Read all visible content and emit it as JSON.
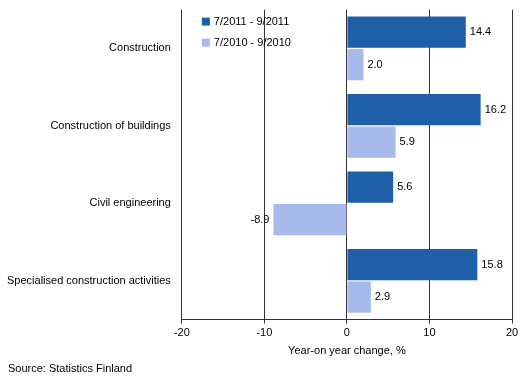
{
  "chart_data": {
    "type": "bar",
    "orientation": "horizontal",
    "categories": [
      "Construction",
      "Construction of buildings",
      "Civil engineering",
      "Specialised construction activities"
    ],
    "series": [
      {
        "name": "7/2011 - 9/2011",
        "color": "#1f5fa8",
        "values": [
          14.4,
          16.2,
          5.6,
          15.8
        ],
        "value_labels": [
          "14.4",
          "16.2",
          "5.6",
          "15.8"
        ]
      },
      {
        "name": "7/2010 - 9/2010",
        "color": "#a8b9ec",
        "values": [
          2.0,
          5.9,
          -8.9,
          2.9
        ],
        "value_labels": [
          "2.0",
          "5.9",
          "-8.9",
          "2.9"
        ]
      }
    ],
    "xlabel": "Year-on year change, %",
    "xlim": [
      -20,
      20
    ],
    "xticks": [
      -20,
      -10,
      0,
      10,
      20
    ],
    "grid": true,
    "legend": "upper left",
    "data_labels": true,
    "annotations": [
      "Source: Statistics Finland"
    ]
  }
}
